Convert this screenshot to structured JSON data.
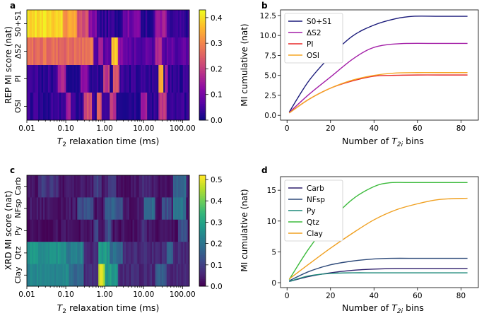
{
  "chart_data": [
    {
      "type": "heatmap",
      "panel_label": "a",
      "xlabel_prefix": "T",
      "xlabel_sub": "2",
      "xlabel_suffix": " relaxation time (ms)",
      "ylabel": "REP MI score (nat)",
      "xscale": "log",
      "xlim": [
        0.01,
        150
      ],
      "xticks": [
        {
          "value": 0.01,
          "label": "0.01"
        },
        {
          "value": 0.1,
          "label": "0.10"
        },
        {
          "value": 1,
          "label": "1.00"
        },
        {
          "value": 10,
          "label": "10.00"
        },
        {
          "value": 100,
          "label": "100.00"
        }
      ],
      "rows": [
        "S0+S1",
        "ΔS2",
        "PI",
        "OSI"
      ],
      "colorbar": {
        "min": 0.0,
        "max": 0.43,
        "ticks": [
          "0.0",
          "0.1",
          "0.2",
          "0.3",
          "0.4"
        ],
        "tick_values": [
          0,
          0.1,
          0.2,
          0.3,
          0.4
        ],
        "colormap": "plasma"
      },
      "bins_per_row": 100,
      "row_profiles": [
        {
          "base": 0.03,
          "bumps": [
            [
              0.01,
              0.08,
              0.4
            ],
            [
              0.08,
              0.2,
              0.33
            ],
            [
              0.2,
              0.4,
              0.22
            ],
            [
              0.4,
              0.6,
              0.12
            ],
            [
              3,
              8,
              0.1
            ],
            [
              20,
              40,
              0.15
            ]
          ]
        },
        {
          "base": 0.07,
          "bumps": [
            [
              0.01,
              0.35,
              0.27
            ],
            [
              0.35,
              0.5,
              0.3
            ],
            [
              0.7,
              0.9,
              0.15
            ],
            [
              1.5,
              2.2,
              0.38
            ],
            [
              2.2,
              3,
              0.14
            ],
            [
              20,
              30,
              0.18
            ]
          ]
        },
        {
          "base": 0.03,
          "bumps": [
            [
              0.06,
              0.1,
              0.18
            ],
            [
              0.25,
              0.4,
              0.12
            ],
            [
              0.9,
              1.3,
              0.2
            ],
            [
              1.6,
              2.5,
              0.22
            ],
            [
              25,
              32,
              0.36
            ],
            [
              35,
              45,
              0.14
            ]
          ]
        },
        {
          "base": 0.03,
          "bumps": [
            [
              0.1,
              0.14,
              0.16
            ],
            [
              0.3,
              0.45,
              0.22
            ],
            [
              0.6,
              0.8,
              0.25
            ],
            [
              1.3,
              2,
              0.18
            ],
            [
              8,
              12,
              0.14
            ],
            [
              25,
              40,
              0.2
            ]
          ]
        }
      ]
    },
    {
      "type": "line",
      "panel_label": "b",
      "xlabel_prefix": "Number of ",
      "xlabel_T": "T",
      "xlabel_sub": "2i",
      "xlabel_suffix": " bins",
      "ylabel": "MI cumulative (nat)",
      "xlim": [
        -3,
        88
      ],
      "ylim": [
        -0.6,
        13.2
      ],
      "xticks": [
        0,
        20,
        40,
        60,
        80
      ],
      "yticks": [
        "0.0",
        "2.5",
        "5.0",
        "7.5",
        "10.0",
        "12.5"
      ],
      "ytick_values": [
        0,
        2.5,
        5,
        7.5,
        10,
        12.5
      ],
      "legend_position": "upper-left",
      "series": [
        {
          "name": "S0+S1",
          "color": "#1a1a7a",
          "x": [
            1,
            10,
            20,
            30,
            40,
            50,
            58,
            70,
            83
          ],
          "y": [
            0.4,
            4.3,
            7.4,
            9.9,
            11.3,
            12.1,
            12.4,
            12.4,
            12.4
          ]
        },
        {
          "name": "ΔS2",
          "color": "#a31fa7",
          "x": [
            1,
            10,
            20,
            30,
            38,
            45,
            55,
            70,
            83
          ],
          "y": [
            0.35,
            2.6,
            4.8,
            7.0,
            8.3,
            8.8,
            9.0,
            9.0,
            9.0
          ]
        },
        {
          "name": "PI",
          "color": "#e82a2a",
          "x": [
            1,
            10,
            20,
            30,
            40,
            48,
            60,
            70,
            83
          ],
          "y": [
            0.3,
            2.0,
            3.4,
            4.3,
            4.9,
            5.0,
            5.05,
            5.05,
            5.05
          ]
        },
        {
          "name": "OSI",
          "color": "#f5a623",
          "x": [
            1,
            10,
            20,
            30,
            40,
            50,
            60,
            70,
            83
          ],
          "y": [
            0.3,
            2.0,
            3.4,
            4.4,
            5.0,
            5.3,
            5.35,
            5.35,
            5.35
          ]
        }
      ]
    },
    {
      "type": "heatmap",
      "panel_label": "c",
      "xlabel_prefix": "T",
      "xlabel_sub": "2",
      "xlabel_suffix": " relaxation time (ms)",
      "ylabel": "XRD MI score (nat)",
      "xscale": "log",
      "xlim": [
        0.01,
        150
      ],
      "xticks": [
        {
          "value": 0.01,
          "label": "0.01"
        },
        {
          "value": 0.1,
          "label": "0.10"
        },
        {
          "value": 1,
          "label": "1.00"
        },
        {
          "value": 10,
          "label": "10.00"
        },
        {
          "value": 100,
          "label": "100.00"
        }
      ],
      "rows": [
        "Carb",
        "NFsp",
        "Py",
        "Qtz",
        "Clay"
      ],
      "colorbar": {
        "min": 0.0,
        "max": 0.52,
        "ticks": [
          "0.0",
          "0.1",
          "0.2",
          "0.3",
          "0.4",
          "0.5"
        ],
        "tick_values": [
          0,
          0.1,
          0.2,
          0.3,
          0.4,
          0.5
        ],
        "colormap": "viridis"
      },
      "bins_per_row": 100,
      "row_profiles": [
        {
          "base": 0.03,
          "bumps": [
            [
              0.02,
              0.06,
              0.08
            ],
            [
              0.5,
              0.8,
              0.1
            ],
            [
              1.2,
              2,
              0.08
            ],
            [
              8,
              15,
              0.06
            ],
            [
              60,
              120,
              0.18
            ]
          ]
        },
        {
          "base": 0.03,
          "bumps": [
            [
              0.2,
              0.5,
              0.12
            ],
            [
              1,
              3,
              0.15
            ],
            [
              10,
              20,
              0.18
            ],
            [
              30,
              50,
              0.12
            ],
            [
              60,
              120,
              0.2
            ]
          ]
        },
        {
          "base": 0.02,
          "bumps": [
            [
              0.5,
              0.7,
              0.1
            ],
            [
              1,
              1.5,
              0.12
            ],
            [
              8,
              12,
              0.08
            ],
            [
              80,
              130,
              0.12
            ]
          ]
        },
        {
          "base": 0.06,
          "bumps": [
            [
              0.01,
              0.1,
              0.27
            ],
            [
              0.1,
              0.3,
              0.22
            ],
            [
              0.7,
              1.3,
              0.28
            ],
            [
              1.3,
              3,
              0.18
            ],
            [
              40,
              60,
              0.15
            ]
          ]
        },
        {
          "base": 0.06,
          "bumps": [
            [
              0.01,
              0.12,
              0.24
            ],
            [
              0.12,
              0.3,
              0.18
            ],
            [
              0.7,
              1.0,
              0.48
            ],
            [
              1.0,
              2.2,
              0.28
            ],
            [
              20,
              40,
              0.15
            ]
          ]
        }
      ]
    },
    {
      "type": "line",
      "panel_label": "d",
      "xlabel_prefix": "Number of ",
      "xlabel_T": "T",
      "xlabel_sub": "2i",
      "xlabel_suffix": " bins",
      "ylabel": "MI cumulative (nat)",
      "xlim": [
        -3,
        88
      ],
      "ylim": [
        -0.8,
        17.2
      ],
      "xticks": [
        0,
        20,
        40,
        60,
        80
      ],
      "yticks": [
        "0",
        "5",
        "10",
        "15"
      ],
      "ytick_values": [
        0,
        5,
        10,
        15
      ],
      "legend_position": "upper-left",
      "series": [
        {
          "name": "Carb",
          "color": "#2d1e6b",
          "x": [
            1,
            10,
            20,
            30,
            40,
            50,
            60,
            70,
            83
          ],
          "y": [
            0.2,
            1.0,
            1.6,
            2.0,
            2.2,
            2.3,
            2.3,
            2.3,
            2.3
          ]
        },
        {
          "name": "NFsp",
          "color": "#2e4a7a",
          "x": [
            1,
            10,
            20,
            30,
            40,
            48,
            60,
            70,
            83
          ],
          "y": [
            0.3,
            1.8,
            2.9,
            3.5,
            3.85,
            3.95,
            3.95,
            3.95,
            3.95
          ]
        },
        {
          "name": "Py",
          "color": "#1f8a7a",
          "x": [
            1,
            10,
            20,
            30,
            40,
            50,
            60,
            70,
            83
          ],
          "y": [
            0.2,
            1.1,
            1.5,
            1.6,
            1.6,
            1.6,
            1.6,
            1.6,
            1.6
          ]
        },
        {
          "name": "Qtz",
          "color": "#3dbb3d",
          "x": [
            1,
            10,
            20,
            30,
            40,
            47,
            55,
            70,
            83
          ],
          "y": [
            0.5,
            5.5,
            10.0,
            13.5,
            15.6,
            16.2,
            16.25,
            16.25,
            16.25
          ]
        },
        {
          "name": "Clay",
          "color": "#f0a020",
          "x": [
            1,
            10,
            20,
            30,
            40,
            50,
            60,
            70,
            83
          ],
          "y": [
            0.6,
            3.0,
            5.6,
            8.0,
            10.2,
            11.8,
            12.8,
            13.5,
            13.7
          ]
        }
      ]
    }
  ]
}
